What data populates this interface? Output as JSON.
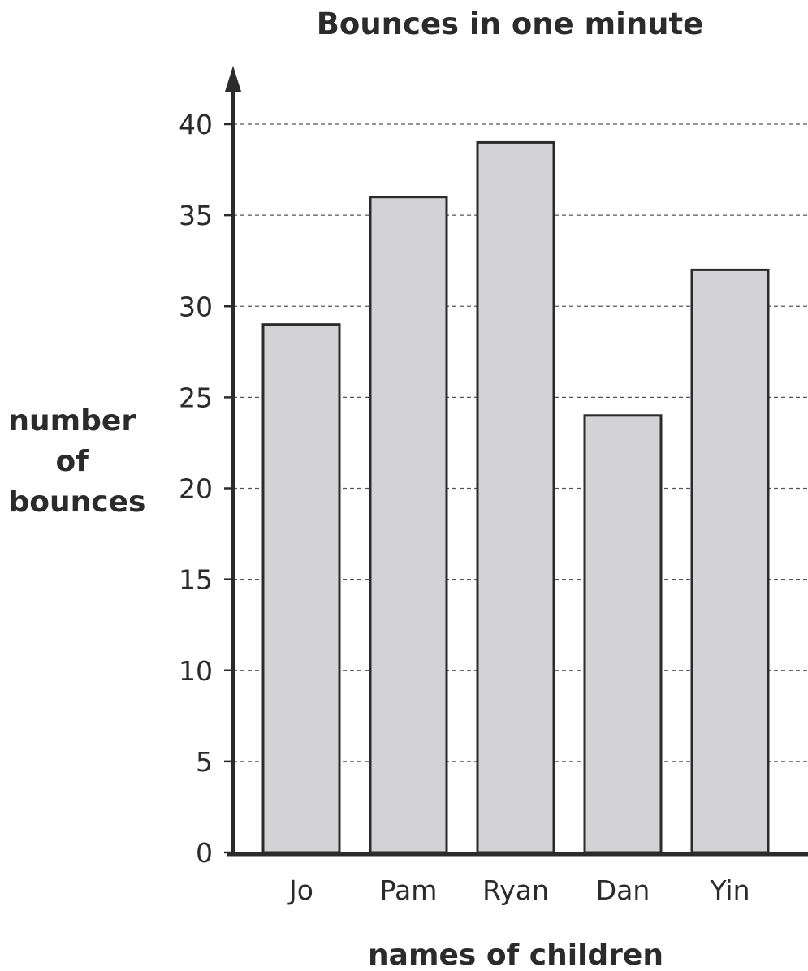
{
  "chart_data": {
    "type": "bar",
    "title": "Bounces in one minute",
    "xlabel": "names of children",
    "ylabel_lines": [
      "number",
      "of",
      "bounces"
    ],
    "categories": [
      "Jo",
      "Pam",
      "Ryan",
      "Dan",
      "Yin"
    ],
    "values": [
      29,
      36,
      39,
      24,
      32
    ],
    "ylim": [
      0,
      40
    ],
    "yticks": [
      0,
      5,
      10,
      15,
      20,
      25,
      30,
      35,
      40
    ],
    "ytick_labels": [
      "0",
      "5",
      "10",
      "15",
      "20",
      "25",
      "30",
      "35",
      "40"
    ],
    "grid": true,
    "colors": {
      "bar_fill": "#d3d3d5",
      "bar_stroke": "#2b2b2b",
      "text": "#2b2b2b"
    }
  }
}
